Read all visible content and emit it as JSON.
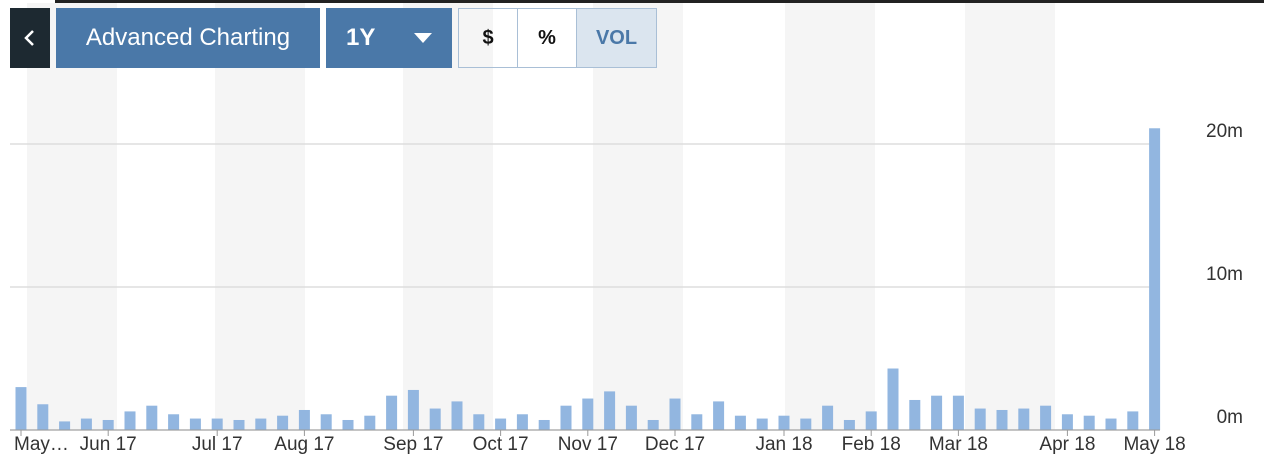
{
  "toolbar": {
    "title": "Advanced Charting",
    "range": "1Y",
    "buttons": [
      "$",
      "%",
      "VOL"
    ],
    "selected": "VOL"
  },
  "chart_data": {
    "type": "bar",
    "color": "#92b6e0",
    "grid": true,
    "categories": [
      "May…",
      null,
      null,
      null,
      "Jun 17",
      null,
      null,
      null,
      null,
      "Jul 17",
      null,
      null,
      null,
      "Aug 17",
      null,
      null,
      null,
      null,
      "Sep 17",
      null,
      null,
      null,
      "Oct 17",
      null,
      null,
      null,
      "Nov 17",
      null,
      null,
      null,
      "Dec 17",
      null,
      null,
      null,
      null,
      "Jan 18",
      null,
      null,
      null,
      "Feb 18",
      null,
      null,
      null,
      "Mar 18",
      null,
      null,
      null,
      null,
      "Apr 18",
      null,
      null,
      null,
      "May 18"
    ],
    "values": [
      3.0,
      1.8,
      0.6,
      0.8,
      0.7,
      1.3,
      1.7,
      1.1,
      0.8,
      0.8,
      0.7,
      0.8,
      1.0,
      1.4,
      1.1,
      0.7,
      1.0,
      2.4,
      2.8,
      1.5,
      2.0,
      1.1,
      0.8,
      1.1,
      0.7,
      1.7,
      2.2,
      2.7,
      1.7,
      0.7,
      2.2,
      1.1,
      2.0,
      1.0,
      0.8,
      1.0,
      0.8,
      1.7,
      0.7,
      1.3,
      4.3,
      2.1,
      2.4,
      2.4,
      1.5,
      1.4,
      1.5,
      1.7,
      1.1,
      1.0,
      0.8,
      1.3,
      21.1
    ],
    "ylim": [
      0,
      22
    ],
    "yticks": [
      {
        "value": 0,
        "label": "0m"
      },
      {
        "value": 10,
        "label": "10m"
      },
      {
        "value": 20,
        "label": "20m"
      }
    ]
  }
}
